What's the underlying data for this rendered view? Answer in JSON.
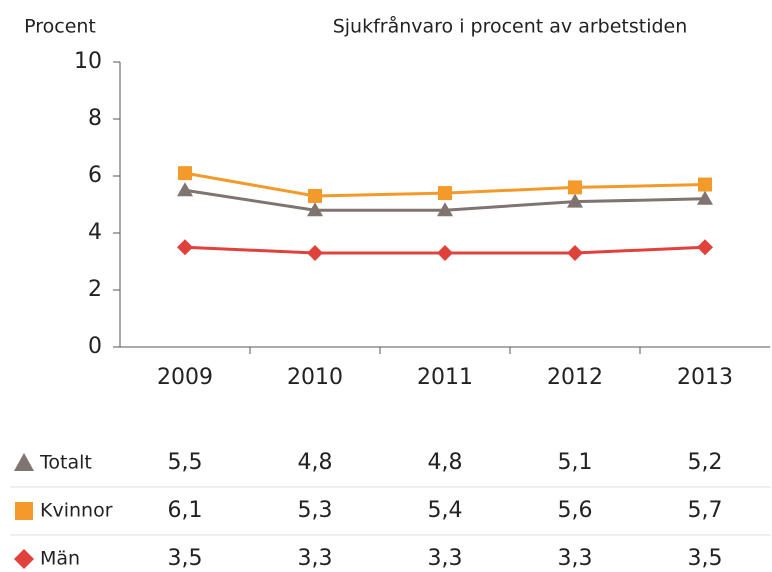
{
  "chart_data": {
    "type": "line",
    "title": "Sjukfrånvaro i procent av arbetstiden",
    "y_label": "Procent",
    "categories": [
      "2009",
      "2010",
      "2011",
      "2012",
      "2013"
    ],
    "series": [
      {
        "name": "Totalt",
        "color": "#7f7470",
        "marker": "triangle",
        "values": [
          5.5,
          4.8,
          4.8,
          5.1,
          5.2
        ],
        "value_labels": [
          "5,5",
          "4,8",
          "4,8",
          "5,1",
          "5,2"
        ]
      },
      {
        "name": "Kvinnor",
        "color": "#f39a2a",
        "marker": "square",
        "values": [
          6.1,
          5.3,
          5.4,
          5.6,
          5.7
        ],
        "value_labels": [
          "6,1",
          "5,3",
          "5,4",
          "5,6",
          "5,7"
        ]
      },
      {
        "name": "Män",
        "color": "#e0413b",
        "marker": "diamond",
        "values": [
          3.5,
          3.3,
          3.3,
          3.3,
          3.5
        ],
        "value_labels": [
          "3,5",
          "3,3",
          "3,3",
          "3,3",
          "3,5"
        ]
      }
    ],
    "ylim": [
      0,
      10
    ],
    "yticks": [
      0,
      2,
      4,
      6,
      8,
      10
    ],
    "grid": false
  }
}
